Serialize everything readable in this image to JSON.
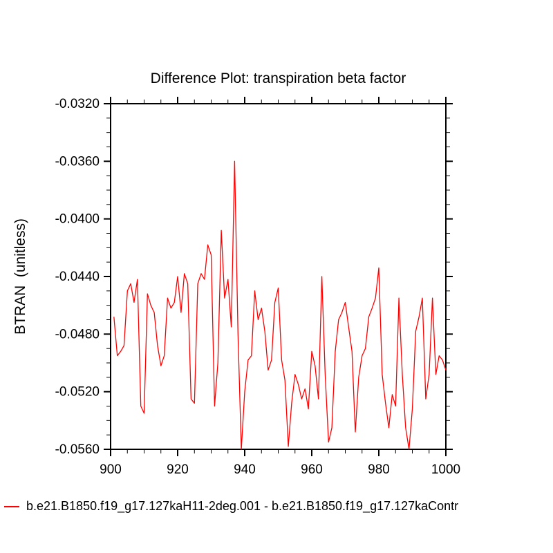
{
  "chart": {
    "title": "Difference Plot: transpiration beta factor",
    "ylabel": "BTRAN  (unitless)",
    "legend": {
      "label": "b.e21.B1850.f19_g17.127kaH11-2deg.001 - b.e21.B1850.f19_g17.127kaContr",
      "color": "#ff0000"
    }
  },
  "chart_data": {
    "type": "line",
    "title": "Difference Plot: transpiration beta factor",
    "xlabel": "",
    "ylabel": "BTRAN  (unitless)",
    "xlim": [
      900,
      1000
    ],
    "ylim": [
      -0.056,
      -0.032
    ],
    "x_ticks": [
      900,
      920,
      940,
      960,
      980,
      1000
    ],
    "x_tick_labels": [
      "900",
      "920",
      "940",
      "960",
      "980",
      "1000"
    ],
    "x_minor_step": 5,
    "y_ticks": [
      -0.032,
      -0.036,
      -0.04,
      -0.044,
      -0.048,
      -0.052,
      -0.056
    ],
    "y_tick_labels": [
      "-0.0320",
      "-0.0360",
      "-0.0400",
      "-0.0440",
      "-0.0480",
      "-0.0520",
      "-0.0560"
    ],
    "y_minor_step": 0.001,
    "grid": false,
    "legend_position": "bottom-left",
    "series": [
      {
        "name": "b.e21.B1850.f19_g17.127kaH11-2deg.001 - b.e21.B1850.f19_g17.127kaContr",
        "color": "#ff0000",
        "x": [
          901,
          902,
          903,
          904,
          905,
          906,
          907,
          908,
          909,
          910,
          911,
          912,
          913,
          914,
          915,
          916,
          917,
          918,
          919,
          920,
          921,
          922,
          923,
          924,
          925,
          926,
          927,
          928,
          929,
          930,
          931,
          932,
          933,
          934,
          935,
          936,
          937,
          938,
          939,
          940,
          941,
          942,
          943,
          944,
          945,
          946,
          947,
          948,
          949,
          950,
          951,
          952,
          953,
          954,
          955,
          956,
          957,
          958,
          959,
          960,
          961,
          962,
          963,
          964,
          965,
          966,
          967,
          968,
          969,
          970,
          971,
          972,
          973,
          974,
          975,
          976,
          977,
          978,
          979,
          980,
          981,
          982,
          983,
          984,
          985,
          986,
          987,
          988,
          989,
          990,
          991,
          992,
          993,
          994,
          995,
          996,
          997,
          998,
          999,
          1000
        ],
        "y": [
          -0.0468,
          -0.0495,
          -0.0492,
          -0.0488,
          -0.045,
          -0.0445,
          -0.0458,
          -0.0442,
          -0.053,
          -0.0535,
          -0.0452,
          -0.046,
          -0.0465,
          -0.0488,
          -0.0502,
          -0.0495,
          -0.0455,
          -0.0462,
          -0.0458,
          -0.044,
          -0.0465,
          -0.0438,
          -0.0445,
          -0.0525,
          -0.0528,
          -0.0445,
          -0.0438,
          -0.0442,
          -0.0418,
          -0.0425,
          -0.053,
          -0.05,
          -0.0408,
          -0.0455,
          -0.0442,
          -0.0475,
          -0.036,
          -0.048,
          -0.056,
          -0.052,
          -0.0498,
          -0.0495,
          -0.045,
          -0.047,
          -0.0462,
          -0.0478,
          -0.0505,
          -0.0498,
          -0.0458,
          -0.0448,
          -0.0498,
          -0.0512,
          -0.0558,
          -0.0528,
          -0.0508,
          -0.0515,
          -0.0525,
          -0.0518,
          -0.0532,
          -0.0492,
          -0.0502,
          -0.0525,
          -0.044,
          -0.0508,
          -0.0555,
          -0.0545,
          -0.0492,
          -0.047,
          -0.0465,
          -0.0458,
          -0.0475,
          -0.0492,
          -0.0548,
          -0.051,
          -0.0495,
          -0.049,
          -0.0468,
          -0.0462,
          -0.0455,
          -0.0434,
          -0.0508,
          -0.0528,
          -0.0545,
          -0.0522,
          -0.053,
          -0.0455,
          -0.0508,
          -0.0545,
          -0.056,
          -0.0532,
          -0.0478,
          -0.0468,
          -0.0455,
          -0.0525,
          -0.0508,
          -0.0455,
          -0.0508,
          -0.0495,
          -0.0498,
          -0.0505
        ]
      }
    ]
  }
}
